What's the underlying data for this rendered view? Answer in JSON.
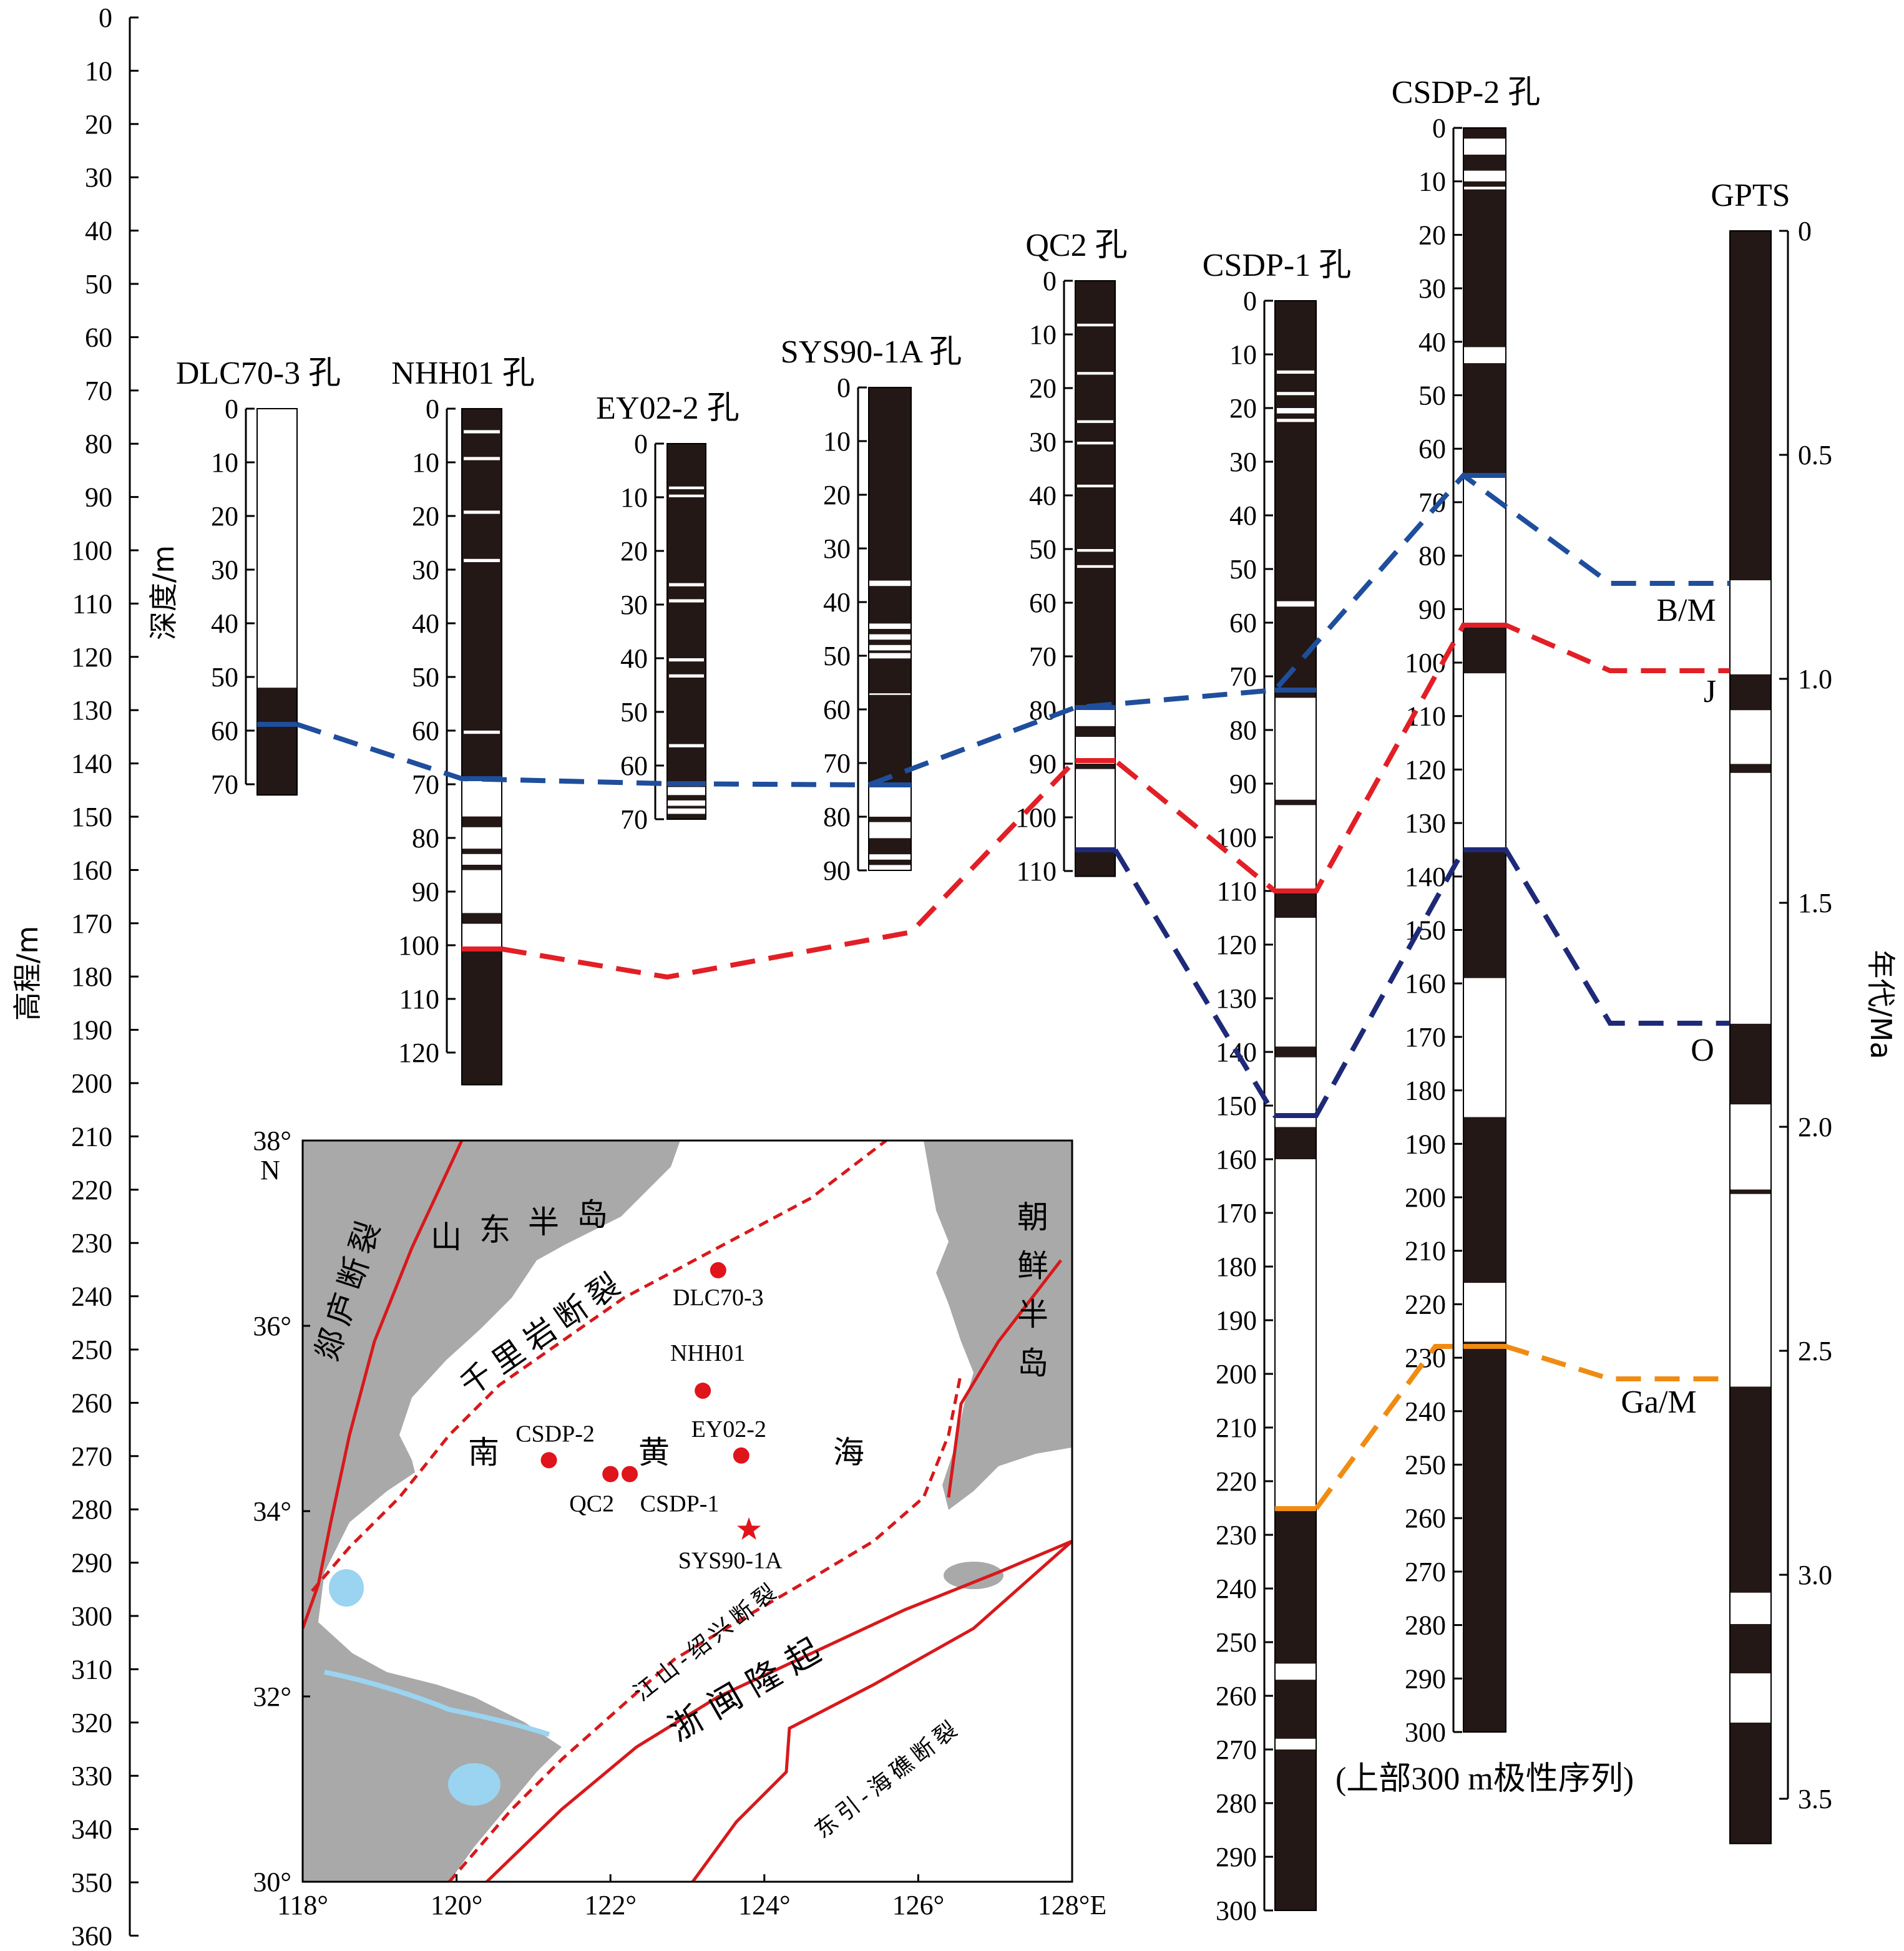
{
  "colors": {
    "normal": "#231815",
    "reversed": "#ffffff",
    "bm_line": "#1f4e9c",
    "j_line": "#e21f26",
    "o_line": "#1e2a78",
    "gam_line": "#f08b12",
    "map_land": "#a9a9a9",
    "map_water": "#9ad4f0",
    "fault": "#d7191c",
    "site": "#e0141b"
  },
  "elevation_axis": {
    "label": "高程/m",
    "ticks": [
      "0",
      "10",
      "20",
      "30",
      "40",
      "50",
      "60",
      "70",
      "80",
      "90",
      "100",
      "110",
      "120",
      "130",
      "140",
      "150",
      "160",
      "170",
      "180",
      "190",
      "200",
      "210",
      "220",
      "230",
      "240",
      "250",
      "260",
      "270",
      "280",
      "290",
      "300",
      "310",
      "320",
      "330",
      "340",
      "350",
      "360"
    ]
  },
  "depth_label": "深度/m",
  "age_label": "年代/Ma",
  "cores": [
    {
      "title": "DLC70-3 孔",
      "ticks": [
        "0",
        "10",
        "20",
        "30",
        "40",
        "50",
        "60",
        "70"
      ]
    },
    {
      "title": "NHH01 孔",
      "ticks": [
        "0",
        "10",
        "20",
        "30",
        "40",
        "50",
        "60",
        "70",
        "80",
        "90",
        "100",
        "110",
        "120"
      ]
    },
    {
      "title": "EY02-2 孔",
      "ticks": [
        "0",
        "10",
        "20",
        "30",
        "40",
        "50",
        "60",
        "70"
      ]
    },
    {
      "title": "SYS90-1A 孔",
      "ticks": [
        "0",
        "10",
        "20",
        "30",
        "40",
        "50",
        "60",
        "70",
        "80",
        "90"
      ]
    },
    {
      "title": "QC2 孔",
      "ticks": [
        "0",
        "10",
        "20",
        "30",
        "40",
        "50",
        "60",
        "70",
        "80",
        "90",
        "100",
        "110"
      ]
    },
    {
      "title": "CSDP-1 孔",
      "ticks": [
        "0",
        "10",
        "20",
        "30",
        "40",
        "50",
        "60",
        "70",
        "80",
        "90",
        "100",
        "110",
        "120",
        "130",
        "140",
        "150",
        "160",
        "170",
        "180",
        "190",
        "200",
        "210",
        "220",
        "230",
        "240",
        "250",
        "260",
        "270",
        "280",
        "290",
        "300"
      ]
    },
    {
      "title": "CSDP-2 孔",
      "ticks": [
        "0",
        "10",
        "20",
        "30",
        "40",
        "50",
        "60",
        "70",
        "80",
        "90",
        "100",
        "110",
        "120",
        "130",
        "140",
        "150",
        "160",
        "170",
        "180",
        "190",
        "200",
        "210",
        "220",
        "230",
        "240",
        "250",
        "260",
        "270",
        "280",
        "290",
        "300"
      ],
      "note": "(上部300 m极性序列)"
    },
    {
      "title": "GPTS",
      "ticks": [
        "0",
        "0.5",
        "1.0",
        "1.5",
        "2.0",
        "2.5",
        "3.0",
        "3.5"
      ]
    }
  ],
  "boundaries": [
    "B/M",
    "J",
    "O",
    "Ga/M"
  ],
  "map": {
    "lat_ticks": [
      "38°",
      "36°",
      "34°",
      "32°",
      "30°"
    ],
    "lat_unit": "N",
    "lon_ticks": [
      "118°",
      "120°",
      "122°",
      "124°",
      "126°",
      "128°E"
    ],
    "regions": {
      "shandong": "山东半岛",
      "korea": "朝鲜半岛",
      "south_yellow_sea": [
        "南",
        "黄",
        "海"
      ],
      "zhemin": "浙闽隆起"
    },
    "faults": {
      "tanlu": "郯庐断裂",
      "qianliyan": "千里岩断裂",
      "jiangshan": "江山-绍兴断裂",
      "dongyin": "东引-海礁断裂"
    },
    "sites": [
      "DLC70-3",
      "NHH01",
      "EY02-2",
      "CSDP-2",
      "QC2",
      "CSDP-1",
      "SYS90-1A"
    ]
  }
}
